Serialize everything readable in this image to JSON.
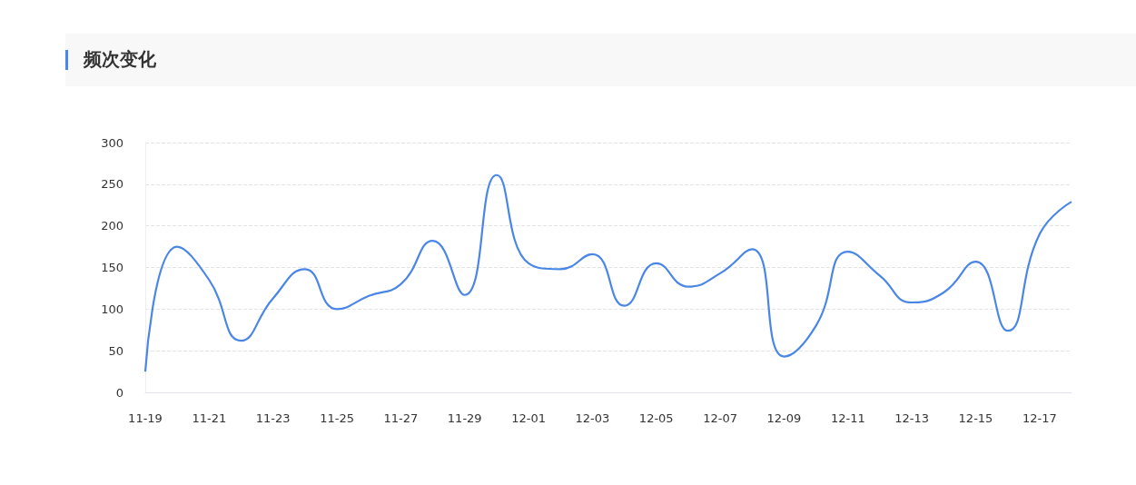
{
  "chart_data": {
    "type": "line",
    "title": "频次变化",
    "categories": [
      "11-19",
      null,
      "11-21",
      null,
      "11-23",
      null,
      "11-25",
      null,
      "11-27",
      null,
      "11-29",
      null,
      "12-01",
      null,
      "12-03",
      null,
      "12-05",
      null,
      "12-07",
      null,
      "12-09",
      null,
      "12-11",
      null,
      "12-13",
      null,
      "12-15",
      null,
      "12-17",
      null
    ],
    "series": [
      {
        "color": "#4a86e8",
        "values": [
          25,
          175,
          135,
          62,
          113,
          148,
          100,
          116,
          130,
          182,
          117,
          261,
          155,
          148,
          166,
          104,
          155,
          127,
          143,
          172,
          43,
          80,
          169,
          140,
          108,
          120,
          157,
          74,
          190,
          229
        ]
      }
    ],
    "ylim": [
      0,
      300
    ],
    "yticks": [
      0,
      50,
      100,
      150,
      200,
      250,
      300
    ],
    "grid": "y",
    "marker": "none",
    "line_style": "solid"
  }
}
